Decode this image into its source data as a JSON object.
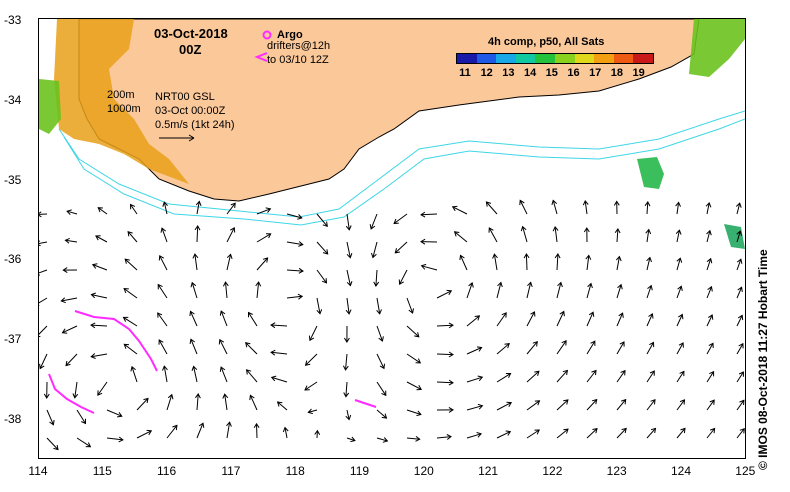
{
  "map": {
    "date_title": "03-Oct-2018",
    "time_title": "00Z",
    "argo_label": "Argo",
    "drifters_label": "drifters@12h",
    "drifters_range": "to 03/10 12Z",
    "product_label": "NRT00 GSL",
    "product_time": "03-Oct 00:00Z",
    "scale_label": "0.5m/s (1kt 24h)",
    "contour_200": "200m",
    "contour_1000": "1000m",
    "credit": "© IMOS 08-Oct-2018 11:27 Hobart Time",
    "colors": {
      "land": "#fbc89a",
      "isobath": "#3fd6e6",
      "drifter": "#ff2bff",
      "arrow": "#000000"
    }
  },
  "axes": {
    "lon_ticks": [
      "114",
      "115",
      "116",
      "117",
      "118",
      "119",
      "120",
      "121",
      "122",
      "123",
      "124",
      "125"
    ],
    "lat_ticks": [
      "-33",
      "-34",
      "-35",
      "-36",
      "-37",
      "-38"
    ]
  },
  "legend": {
    "title": "4h comp, p50, All Sats",
    "ticks": [
      "11",
      "12",
      "13",
      "14",
      "15",
      "16",
      "17",
      "18",
      "19"
    ],
    "colors": [
      "#1a1aa8",
      "#1e5ae6",
      "#18a8e8",
      "#12c8a0",
      "#24c23a",
      "#8ad21e",
      "#e0d81a",
      "#f2a012",
      "#ee5a12",
      "#c81818"
    ]
  }
}
